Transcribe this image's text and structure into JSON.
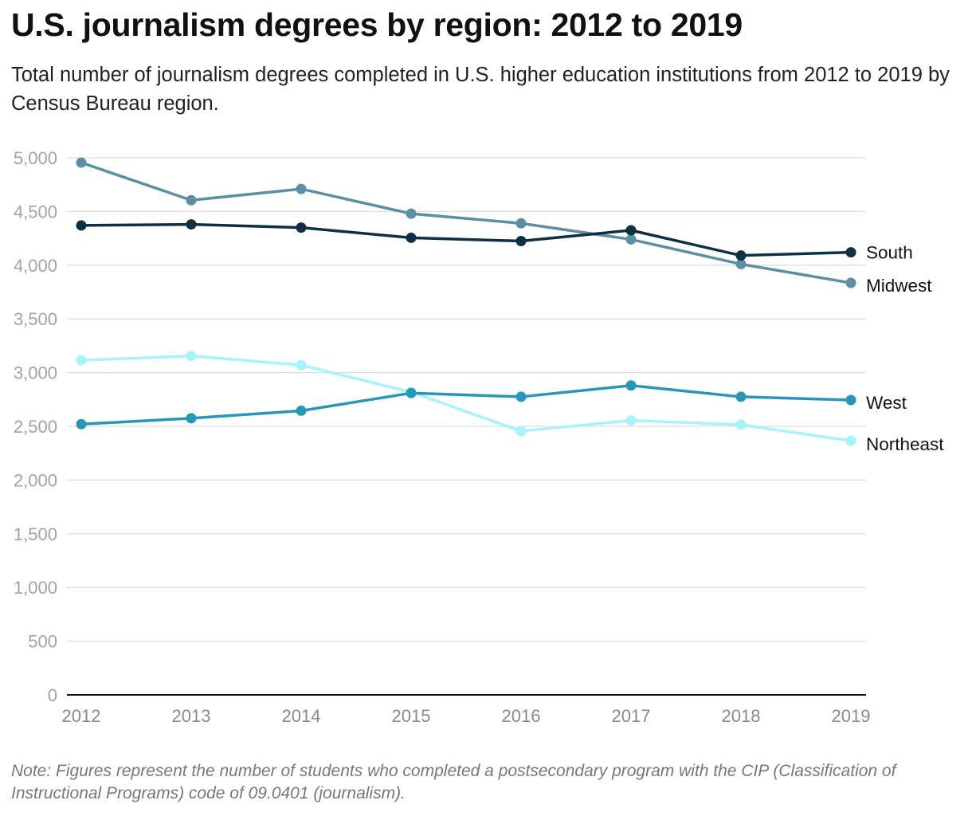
{
  "chart_data": {
    "type": "line",
    "title": "U.S. journalism degrees by region: 2012 to 2019",
    "subtitle": "Total number of journalism degrees completed in U.S. higher education institutions from 2012 to 2019 by Census Bureau region.",
    "note": "Note: Figures represent the number of students who completed a postsecondary program with the CIP (Classification of Instructional Programs) code of 09.0401 (journalism).",
    "x": [
      "2012",
      "2013",
      "2014",
      "2015",
      "2016",
      "2017",
      "2018",
      "2019"
    ],
    "y_ticks": [
      0,
      500,
      1000,
      1500,
      2000,
      2500,
      3000,
      3500,
      4000,
      4500,
      5000
    ],
    "y_tick_labels": [
      "0",
      "500",
      "1,000",
      "1,500",
      "2,000",
      "2,500",
      "3,000",
      "3,500",
      "4,000",
      "4,500",
      "5,000"
    ],
    "ylim": [
      0,
      5000
    ],
    "xlabel": "",
    "ylabel": "",
    "grid": true,
    "legend": "direct labels at line ends",
    "series": [
      {
        "name": "Midwest",
        "color": "#5b8fa3",
        "values": [
          4955,
          4605,
          4710,
          4480,
          4390,
          4240,
          4010,
          3835
        ]
      },
      {
        "name": "South",
        "color": "#0e2f44",
        "values": [
          4370,
          4380,
          4350,
          4255,
          4225,
          4325,
          4090,
          4120
        ]
      },
      {
        "name": "Northeast",
        "color": "#a7f3fc",
        "values": [
          3115,
          3155,
          3070,
          2820,
          2455,
          2555,
          2515,
          2365
        ]
      },
      {
        "name": "West",
        "color": "#2797b8",
        "values": [
          2520,
          2575,
          2645,
          2810,
          2775,
          2880,
          2775,
          2745
        ]
      }
    ]
  }
}
